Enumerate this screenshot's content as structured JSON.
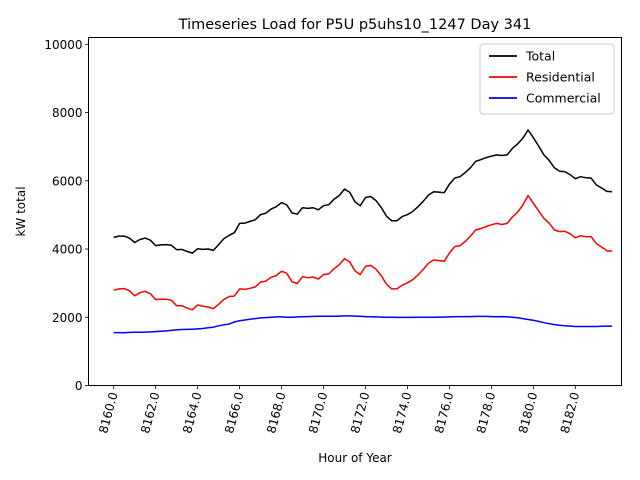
{
  "chart_data": {
    "type": "line",
    "title": "Timeseries Load for P5U p5uhs10_1247  Day 341",
    "xlabel": "Hour of Year",
    "ylabel": "kW total",
    "xlim": [
      8158.8,
      8184.2
    ],
    "ylim": [
      0,
      10200
    ],
    "xticks": [
      8160,
      8162,
      8164,
      8166,
      8168,
      8170,
      8172,
      8174,
      8176,
      8178,
      8180,
      8182
    ],
    "xtick_labels": [
      "8160.0",
      "8162.0",
      "8164.0",
      "8166.0",
      "8168.0",
      "8170.0",
      "8172.0",
      "8174.0",
      "8176.0",
      "8178.0",
      "8180.0",
      "8182.0"
    ],
    "yticks": [
      0,
      2000,
      4000,
      6000,
      8000,
      10000
    ],
    "ytick_labels": [
      "0",
      "2000",
      "4000",
      "6000",
      "8000",
      "10000"
    ],
    "legend_position": "top-right",
    "grid": false,
    "x": [
      8160.0,
      8160.25,
      8160.5,
      8160.75,
      8161.0,
      8161.25,
      8161.5,
      8161.75,
      8162.0,
      8162.25,
      8162.5,
      8162.75,
      8163.0,
      8163.25,
      8163.5,
      8163.75,
      8164.0,
      8164.25,
      8164.5,
      8164.75,
      8165.0,
      8165.25,
      8165.5,
      8165.75,
      8166.0,
      8166.25,
      8166.5,
      8166.75,
      8167.0,
      8167.25,
      8167.5,
      8167.75,
      8168.0,
      8168.25,
      8168.5,
      8168.75,
      8169.0,
      8169.25,
      8169.5,
      8169.75,
      8170.0,
      8170.25,
      8170.5,
      8170.75,
      8171.0,
      8171.25,
      8171.5,
      8171.75,
      8172.0,
      8172.25,
      8172.5,
      8172.75,
      8173.0,
      8173.25,
      8173.5,
      8173.75,
      8174.0,
      8174.25,
      8174.5,
      8174.75,
      8175.0,
      8175.25,
      8175.5,
      8175.75,
      8176.0,
      8176.25,
      8176.5,
      8176.75,
      8177.0,
      8177.25,
      8177.5,
      8177.75,
      8178.0,
      8178.25,
      8178.5,
      8178.75,
      8179.0,
      8179.25,
      8179.5,
      8179.75,
      8180.0,
      8180.25,
      8180.5,
      8180.75,
      8181.0,
      8181.25,
      8181.5,
      8181.75,
      8182.0,
      8182.25,
      8182.5,
      8182.75,
      8183.0,
      8183.25,
      8183.5,
      8183.75
    ],
    "series": [
      {
        "name": "Total",
        "color": "#000000",
        "values": [
          4340,
          4380,
          4380,
          4320,
          4190,
          4280,
          4320,
          4260,
          4100,
          4120,
          4130,
          4110,
          3980,
          3990,
          3930,
          3880,
          4010,
          3990,
          4000,
          3960,
          4130,
          4300,
          4400,
          4480,
          4750,
          4760,
          4810,
          4860,
          5010,
          5050,
          5170,
          5240,
          5360,
          5290,
          5060,
          5020,
          5210,
          5190,
          5210,
          5150,
          5270,
          5300,
          5460,
          5570,
          5760,
          5660,
          5380,
          5270,
          5510,
          5540,
          5420,
          5220,
          4960,
          4830,
          4830,
          4950,
          5010,
          5100,
          5240,
          5400,
          5580,
          5680,
          5670,
          5650,
          5900,
          6080,
          6120,
          6240,
          6380,
          6570,
          6620,
          6680,
          6720,
          6760,
          6740,
          6760,
          6950,
          7080,
          7250,
          7490,
          7260,
          7020,
          6760,
          6600,
          6380,
          6280,
          6270,
          6180,
          6060,
          6120,
          6090,
          6080,
          5880,
          5790,
          5690,
          5680
        ]
      },
      {
        "name": "Residential",
        "color": "#ff0000",
        "values": [
          2790,
          2830,
          2840,
          2780,
          2630,
          2720,
          2760,
          2690,
          2520,
          2530,
          2530,
          2500,
          2340,
          2340,
          2270,
          2220,
          2360,
          2320,
          2300,
          2250,
          2380,
          2520,
          2610,
          2620,
          2830,
          2820,
          2850,
          2890,
          3030,
          3060,
          3170,
          3220,
          3350,
          3290,
          3040,
          2990,
          3190,
          3160,
          3180,
          3120,
          3250,
          3270,
          3420,
          3540,
          3720,
          3620,
          3360,
          3250,
          3490,
          3520,
          3410,
          3220,
          2970,
          2830,
          2830,
          2940,
          3010,
          3100,
          3240,
          3400,
          3580,
          3680,
          3660,
          3640,
          3880,
          4070,
          4100,
          4220,
          4380,
          4560,
          4600,
          4660,
          4710,
          4750,
          4720,
          4750,
          4940,
          5080,
          5290,
          5570,
          5340,
          5120,
          4900,
          4760,
          4560,
          4510,
          4520,
          4450,
          4330,
          4390,
          4360,
          4360,
          4160,
          4060,
          3950,
          3940
        ]
      },
      {
        "name": "Commercial",
        "color": "#0000ff",
        "values": [
          1550,
          1550,
          1545,
          1555,
          1560,
          1560,
          1565,
          1570,
          1580,
          1590,
          1600,
          1615,
          1630,
          1640,
          1645,
          1650,
          1660,
          1670,
          1690,
          1710,
          1750,
          1780,
          1800,
          1860,
          1900,
          1920,
          1940,
          1960,
          1980,
          1990,
          2000,
          2010,
          2010,
          2000,
          2000,
          2010,
          2015,
          2020,
          2025,
          2030,
          2030,
          2030,
          2030,
          2035,
          2040,
          2040,
          2035,
          2030,
          2020,
          2015,
          2010,
          2005,
          2000,
          2000,
          1995,
          1995,
          1995,
          1995,
          2000,
          2000,
          2000,
          2000,
          2005,
          2005,
          2010,
          2015,
          2020,
          2020,
          2020,
          2025,
          2025,
          2025,
          2020,
          2015,
          2020,
          2015,
          2000,
          1985,
          1960,
          1935,
          1910,
          1880,
          1840,
          1810,
          1785,
          1765,
          1750,
          1740,
          1730,
          1730,
          1730,
          1730,
          1730,
          1735,
          1740,
          1740
        ]
      }
    ]
  }
}
